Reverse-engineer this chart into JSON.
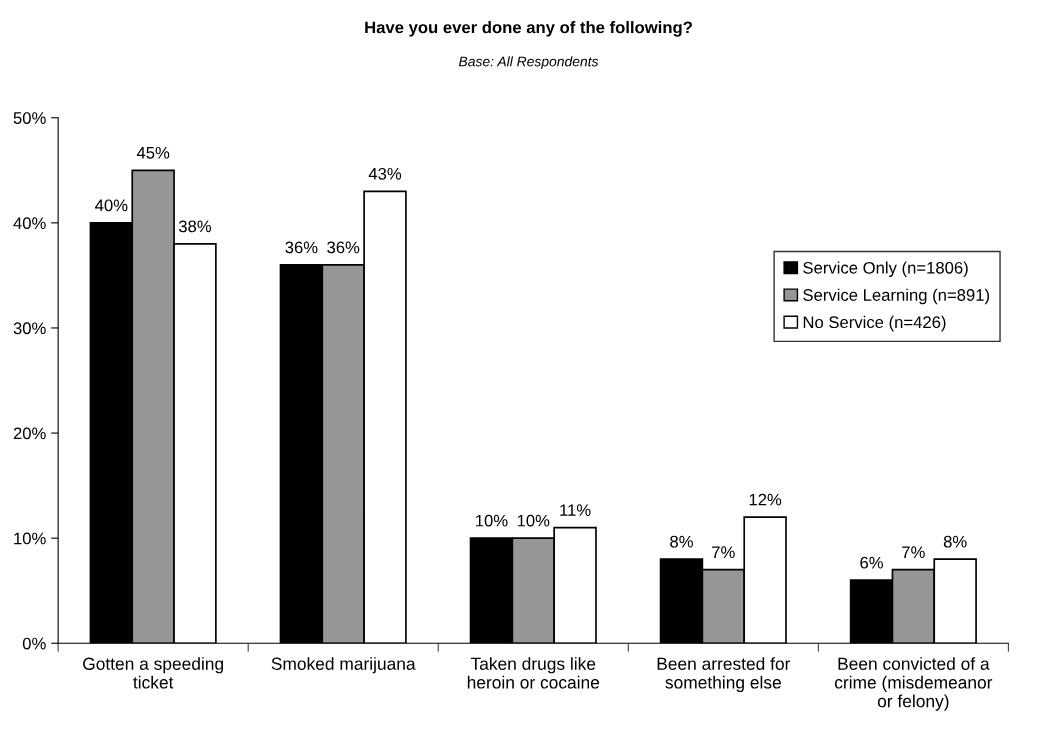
{
  "chart_data": {
    "type": "bar",
    "title": "Have you ever done any of the following?",
    "subtitle": "Base: All Respondents",
    "categories": [
      "Gotten a speeding\nticket",
      "Smoked marijuana",
      "Taken drugs like\nheroin or cocaine",
      "Been arrested for\nsomething else",
      "Been convicted of a\ncrime (misdemeanor\nor felony)"
    ],
    "series": [
      {
        "name": "Service Only (n=1806)",
        "color": "#000000",
        "values": [
          40,
          36,
          10,
          8,
          6
        ]
      },
      {
        "name": "Service Learning (n=891)",
        "color": "#969696",
        "values": [
          45,
          36,
          10,
          7,
          7
        ]
      },
      {
        "name": "No Service (n=426)",
        "color": "#ffffff",
        "values": [
          38,
          43,
          11,
          12,
          8
        ]
      }
    ],
    "ylim": [
      0,
      50
    ],
    "yticks": [
      {
        "value": 0,
        "label": "0%"
      },
      {
        "value": 10,
        "label": "10%"
      },
      {
        "value": 20,
        "label": "20%"
      },
      {
        "value": 30,
        "label": "30%"
      },
      {
        "value": 40,
        "label": "40%"
      },
      {
        "value": 50,
        "label": "50%"
      }
    ],
    "value_labels": [
      [
        "40%",
        "36%",
        "10%",
        "8%",
        "6%"
      ],
      [
        "45%",
        "36%",
        "10%",
        "7%",
        "7%"
      ],
      [
        "38%",
        "43%",
        "11%",
        "12%",
        "8%"
      ]
    ],
    "grid": false,
    "legend": "right"
  }
}
